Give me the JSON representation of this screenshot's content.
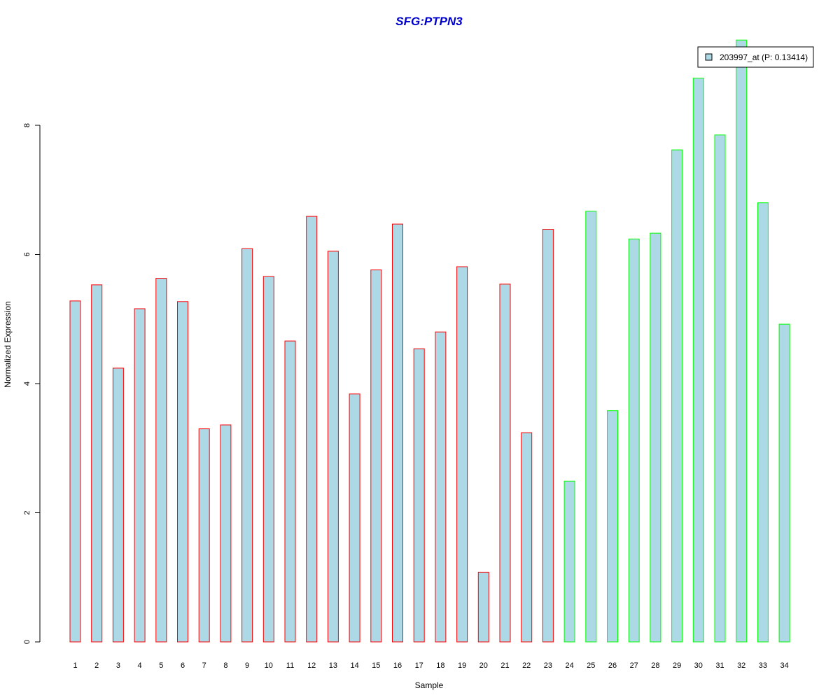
{
  "chart_data": {
    "type": "bar",
    "title": "SFG:PTPN3",
    "xlabel": "Sample",
    "ylabel": "Normalized Expression",
    "ylim": [
      0,
      9.6
    ],
    "yticks": [
      0,
      2,
      4,
      6,
      8
    ],
    "categories": [
      "1",
      "2",
      "3",
      "4",
      "5",
      "6",
      "7",
      "8",
      "9",
      "10",
      "11",
      "12",
      "13",
      "14",
      "15",
      "16",
      "17",
      "18",
      "19",
      "20",
      "21",
      "22",
      "23",
      "24",
      "25",
      "26",
      "27",
      "28",
      "29",
      "30",
      "31",
      "32",
      "33",
      "34"
    ],
    "series": [
      {
        "name": "203997_at (P: 0.13414)",
        "values": [
          5.28,
          5.53,
          4.24,
          5.16,
          5.63,
          5.27,
          3.3,
          3.36,
          6.09,
          5.66,
          4.66,
          6.59,
          6.05,
          3.84,
          5.76,
          6.47,
          4.54,
          4.8,
          5.81,
          1.08,
          5.54,
          3.24,
          6.39,
          2.49,
          6.67,
          3.58,
          6.24,
          6.33,
          7.62,
          8.73,
          7.85,
          9.32,
          6.8,
          4.92
        ]
      }
    ],
    "bar_fill": "#add8e6",
    "group_border_colors": [
      "#ff0000",
      "#ff0000",
      "#ff0000",
      "#ff0000",
      "#ff0000",
      "#ff0000",
      "#ff0000",
      "#ff0000",
      "#ff0000",
      "#ff0000",
      "#ff0000",
      "#ff0000",
      "#ff0000",
      "#ff0000",
      "#ff0000",
      "#ff0000",
      "#ff0000",
      "#ff0000",
      "#ff0000",
      "#ff0000",
      "#ff0000",
      "#ff0000",
      "#ff0000",
      "#00ff00",
      "#00ff00",
      "#00ff00",
      "#00ff00",
      "#00ff00",
      "#00ff00",
      "#00ff00",
      "#00ff00",
      "#00ff00",
      "#00ff00",
      "#00ff00"
    ],
    "title_color": "#0000cc",
    "grid": false,
    "legend_position": "top-right"
  }
}
